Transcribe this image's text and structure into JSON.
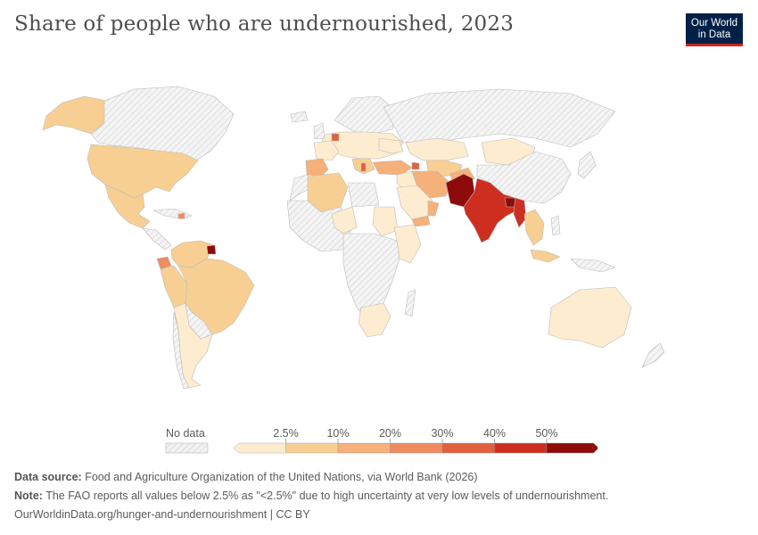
{
  "header": {
    "title": "Share of people who are undernourished, 2023",
    "logo_line1": "Our World",
    "logo_line2": "in Data"
  },
  "legend": {
    "no_data_label": "No data",
    "ticks": [
      "2.5%",
      "10%",
      "20%",
      "30%",
      "40%",
      "50%"
    ],
    "bins": [
      {
        "label": "<2.5%",
        "color": "#fdeccf"
      },
      {
        "label": "2.5-10%",
        "color": "#f8cf92"
      },
      {
        "label": "10-20%",
        "color": "#f6b079"
      },
      {
        "label": "20-30%",
        "color": "#ef8b5e"
      },
      {
        "label": "30-40%",
        "color": "#e0603f"
      },
      {
        "label": "40-50%",
        "color": "#cd2e1f"
      },
      {
        "label": ">50%",
        "color": "#8e0b0b"
      }
    ],
    "no_data_color": "#f2f2f2"
  },
  "footer": {
    "source_label": "Data source:",
    "source_text": "Food and Agriculture Organization of the United Nations, via World Bank (2026)",
    "note_label": "Note:",
    "note_text": "The FAO reports all values below 2.5% as \"<2.5%\" due to high uncertainty at very low levels of undernourishment.",
    "url_text": "OurWorldinData.org/hunger-and-undernourishment | CC BY"
  }
}
